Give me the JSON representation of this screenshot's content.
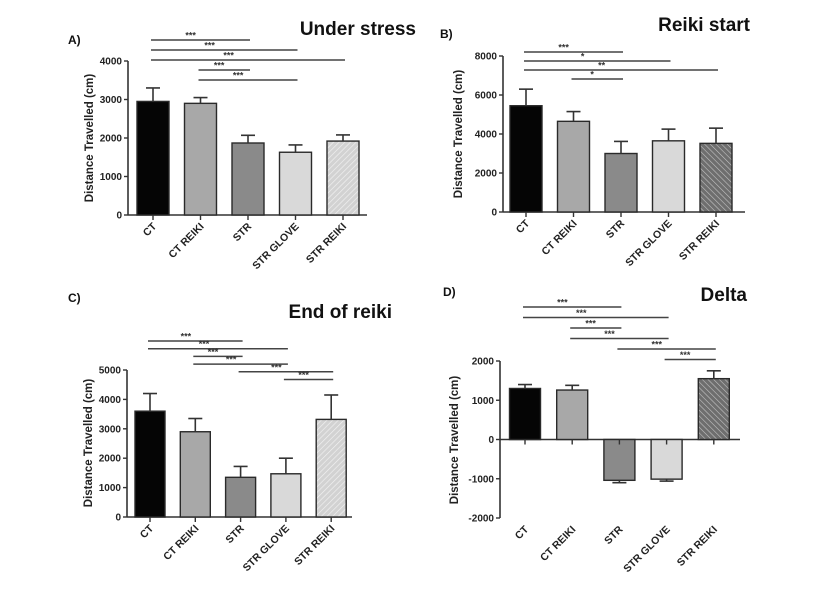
{
  "chart_data": [
    {
      "type": "bar",
      "panel": "A)",
      "title": "Under stress",
      "xlabel": "",
      "ylabel": "Distance Travelled (cm)",
      "categories": [
        "CT",
        "CT REIKI",
        "STR",
        "STR GLOVE",
        "STR REIKI"
      ],
      "values": [
        2950,
        2900,
        1870,
        1630,
        1920
      ],
      "error_upper": [
        3300,
        3050,
        2070,
        1820,
        2080
      ],
      "ylim": [
        0,
        4000
      ],
      "yticks": [
        0,
        1000,
        2000,
        3000,
        4000
      ],
      "yticklabels": [
        "0",
        "1000",
        "2000",
        "3000",
        "4000"
      ],
      "significance": [
        {
          "from": "CT",
          "to": "STR",
          "label": "***"
        },
        {
          "from": "CT",
          "to": "STR GLOVE",
          "label": "***"
        },
        {
          "from": "CT",
          "to": "STR REIKI",
          "label": "***"
        },
        {
          "from": "CT REIKI",
          "to": "STR",
          "label": "***"
        },
        {
          "from": "CT REIKI",
          "to": "STR GLOVE",
          "label": "***"
        }
      ],
      "fills": [
        "#050505",
        "#a8a8a8",
        "#8a8a8a",
        "#d9d9d9",
        "hatch-light"
      ]
    },
    {
      "type": "bar",
      "panel": "B)",
      "title": "Reiki start",
      "xlabel": "",
      "ylabel": "Distance Travelled (cm)",
      "categories": [
        "CT",
        "CT REIKI",
        "STR",
        "STR GLOVE",
        "STR REIKI"
      ],
      "values": [
        5450,
        4650,
        3000,
        3650,
        3520
      ],
      "error_upper": [
        6300,
        5150,
        3620,
        4250,
        4300
      ],
      "ylim": [
        0,
        8000
      ],
      "yticks": [
        0,
        2000,
        4000,
        6000,
        8000
      ],
      "yticklabels": [
        "0",
        "2000",
        "4000",
        "6000",
        "8000"
      ],
      "significance": [
        {
          "from": "CT",
          "to": "STR",
          "label": "***"
        },
        {
          "from": "CT",
          "to": "STR GLOVE",
          "label": "*"
        },
        {
          "from": "CT",
          "to": "STR REIKI",
          "label": "**"
        },
        {
          "from": "CT REIKI",
          "to": "STR",
          "label": "*"
        }
      ],
      "fills": [
        "#050505",
        "#a8a8a8",
        "#8a8a8a",
        "#d9d9d9",
        "hatch-dark"
      ]
    },
    {
      "type": "bar",
      "panel": "C)",
      "title": "End of reiki",
      "xlabel": "",
      "ylabel": "Distance Travelled (cm)",
      "categories": [
        "CT",
        "CT REIKI",
        "STR",
        "STR GLOVE",
        "STR REIKI"
      ],
      "values": [
        3600,
        2900,
        1350,
        1470,
        3320
      ],
      "error_upper": [
        4200,
        3350,
        1720,
        2000,
        4150
      ],
      "ylim": [
        0,
        5000
      ],
      "yticks": [
        0,
        1000,
        2000,
        3000,
        4000,
        5000
      ],
      "yticklabels": [
        "0",
        "1000",
        "2000",
        "3000",
        "4000",
        "5000"
      ],
      "significance": [
        {
          "from": "CT",
          "to": "STR",
          "label": "***"
        },
        {
          "from": "CT",
          "to": "STR GLOVE",
          "label": "***"
        },
        {
          "from": "CT REIKI",
          "to": "STR",
          "label": "***"
        },
        {
          "from": "CT REIKI",
          "to": "STR GLOVE",
          "label": "***"
        },
        {
          "from": "STR",
          "to": "STR REIKI",
          "label": "***"
        },
        {
          "from": "STR GLOVE",
          "to": "STR REIKI",
          "label": "***"
        }
      ],
      "fills": [
        "#050505",
        "#a8a8a8",
        "#8a8a8a",
        "#d9d9d9",
        "hatch-light"
      ]
    },
    {
      "type": "bar",
      "panel": "D)",
      "title": "Delta",
      "xlabel": "",
      "ylabel": "Distance Travelled (cm)",
      "categories": [
        "CT",
        "CT REIKI",
        "STR",
        "STR GLOVE",
        "STR REIKI"
      ],
      "values": [
        1300,
        1260,
        -1040,
        -1010,
        1550
      ],
      "error_upper": [
        1400,
        1380,
        -1100,
        -1060,
        1750
      ],
      "ylim": [
        -2000,
        2000
      ],
      "yticks": [
        -2000,
        -1000,
        0,
        1000,
        2000
      ],
      "yticklabels": [
        "-2000",
        "-1000",
        "0",
        "1000",
        "2000"
      ],
      "significance": [
        {
          "from": "CT",
          "to": "STR",
          "label": "***"
        },
        {
          "from": "CT",
          "to": "STR GLOVE",
          "label": "***"
        },
        {
          "from": "CT REIKI",
          "to": "STR",
          "label": "***"
        },
        {
          "from": "CT REIKI",
          "to": "STR GLOVE",
          "label": "***"
        },
        {
          "from": "STR",
          "to": "STR REIKI",
          "label": "***"
        },
        {
          "from": "STR GLOVE",
          "to": "STR REIKI",
          "label": "***"
        }
      ],
      "fills": [
        "#050505",
        "#a8a8a8",
        "#8a8a8a",
        "#d9d9d9",
        "hatch-dark"
      ]
    }
  ]
}
